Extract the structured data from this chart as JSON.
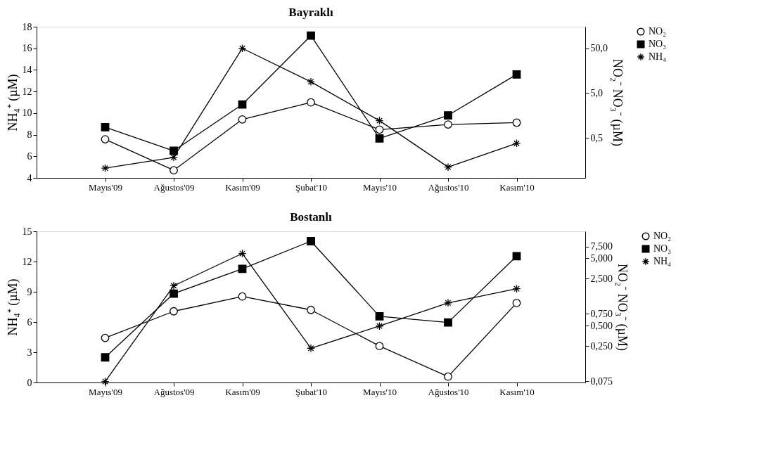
{
  "chart_data": [
    {
      "type": "line",
      "title": "Bayraklı",
      "ylabel": "NH₄⁺ (µM)",
      "y2label": "NO₂⁻ NO₃⁻ (µM)",
      "categories": [
        "Mayıs'09",
        "Ağustos'09",
        "Kasım'09",
        "Şubat'10",
        "Mayıs'10",
        "Ağustos'10",
        "Kasım'10"
      ],
      "series": [
        {
          "name": "NO₂",
          "color": "#000000",
          "marker": "circle",
          "axis": "y2",
          "values": [
            0.47,
            0.096,
            1.3,
            3.1,
            0.77,
            1.0,
            1.1
          ]
        },
        {
          "name": "NO₃",
          "color": "#000000",
          "marker": "square",
          "axis": "y2",
          "values": [
            0.87,
            0.26,
            2.8,
            95,
            0.49,
            1.6,
            13
          ]
        },
        {
          "name": "NH₄",
          "color": "#000000",
          "marker": "cross",
          "values": [
            4.9,
            5.9,
            16.0,
            12.9,
            9.3,
            5.0,
            7.2
          ]
        }
      ],
      "ylim": [
        4,
        18
      ],
      "yticks": [
        4,
        6,
        8,
        10,
        12,
        14,
        16,
        18
      ],
      "y2lim": [
        0.065,
        150
      ],
      "y2ticks": [
        {
          "value": 0.5,
          "label": "0,5"
        },
        {
          "value": 5,
          "label": "5,0"
        },
        {
          "value": 50,
          "label": "50,0"
        }
      ],
      "log": "y2",
      "grid": false,
      "legend": "right"
    },
    {
      "type": "line",
      "title": "Bostanlı",
      "ylabel": "NH₄⁺ (µM)",
      "y2label": "NO₂⁻ NO₃⁻ (µM)",
      "categories": [
        "Mayıs'09",
        "Ağustos'09",
        "Kasım'09",
        "Şubat'10",
        "Mayıs'10",
        "Ağustos'10",
        "Kasım'10"
      ],
      "series": [
        {
          "name": "NO₂",
          "color": "#000000",
          "marker": "circle",
          "axis": "y2",
          "values": [
            0.33,
            0.82,
            1.36,
            0.86,
            0.25,
            0.088,
            1.09
          ]
        },
        {
          "name": "NO₃",
          "color": "#000000",
          "marker": "square",
          "axis": "y2",
          "values": [
            0.17,
            1.5,
            3.5,
            9.0,
            0.69,
            0.56,
            5.4
          ]
        },
        {
          "name": "NH₄",
          "color": "#000000",
          "marker": "cross",
          "values": [
            0.1,
            9.6,
            12.8,
            3.4,
            5.6,
            7.9,
            9.3
          ]
        }
      ],
      "ylim": [
        0,
        15
      ],
      "yticks": [
        0,
        3,
        6,
        9,
        12,
        15
      ],
      "y2lim": [
        0.072,
        12.6
      ],
      "y2ticks": [
        {
          "value": 0.075,
          "label": "0,075"
        },
        {
          "value": 0.25,
          "label": "0,250"
        },
        {
          "value": 0.5,
          "label": "0,500"
        },
        {
          "value": 0.75,
          "label": "0,750"
        },
        {
          "value": 2.5,
          "label": "2,500"
        },
        {
          "value": 5,
          "label": "5,000"
        },
        {
          "value": 7.5,
          "label": "7,500"
        }
      ],
      "log": "y2",
      "grid": false,
      "legend": "right"
    }
  ]
}
